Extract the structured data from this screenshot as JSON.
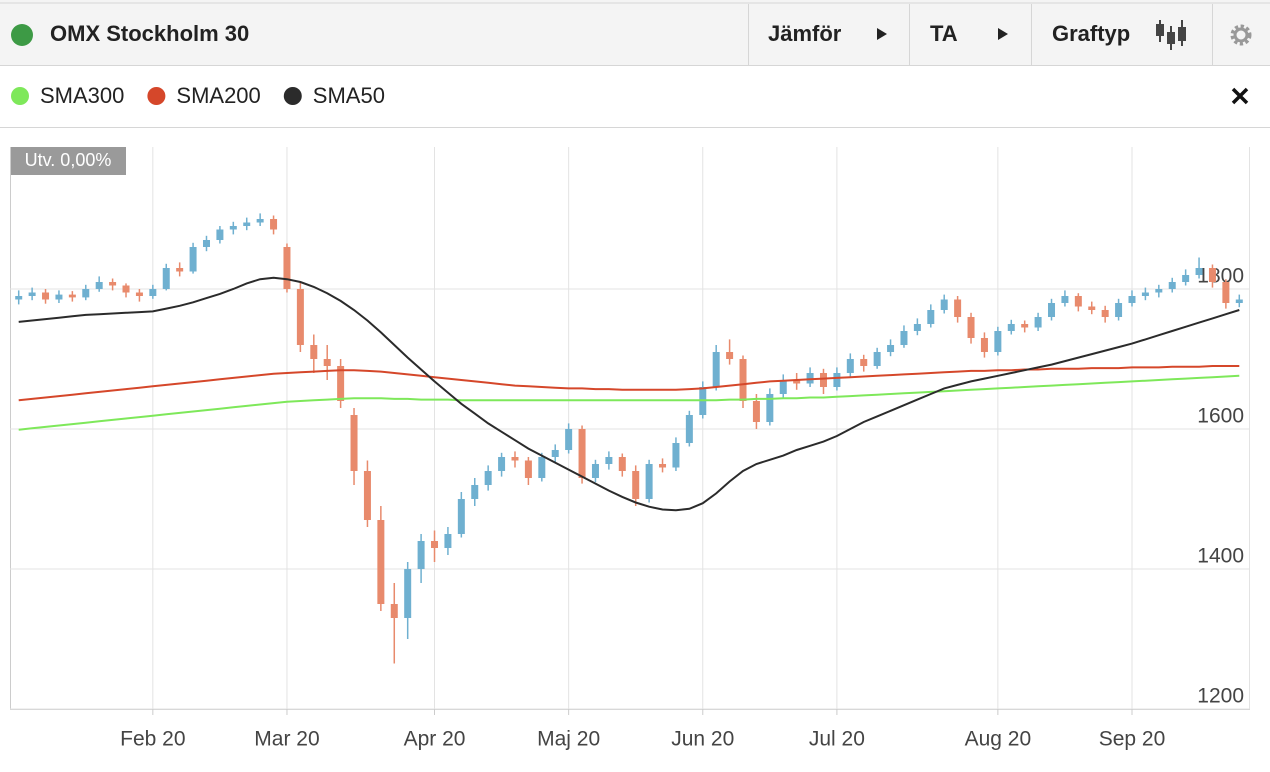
{
  "header": {
    "title": "OMX Stockholm 30",
    "buttons": [
      "Jämför",
      "TA",
      "Graftyp"
    ]
  },
  "chart_data": {
    "type": "candlestick",
    "annotation": "Utv. 0,00%",
    "up_color": "#6fb0d0",
    "down_color": "#e88a6c",
    "ylim": [
      1200,
      2000
    ],
    "yticks": [
      1200,
      1400,
      1600,
      1800
    ],
    "grid": true,
    "categories": [
      null,
      null,
      null,
      null,
      null,
      null,
      null,
      null,
      null,
      null,
      "Feb 20",
      null,
      null,
      null,
      null,
      null,
      null,
      null,
      null,
      null,
      "Mar 20",
      null,
      null,
      null,
      null,
      null,
      null,
      null,
      null,
      null,
      null,
      "Apr 20",
      null,
      null,
      null,
      null,
      null,
      null,
      null,
      null,
      null,
      "Maj 20",
      null,
      null,
      null,
      null,
      null,
      null,
      null,
      null,
      null,
      "Jun 20",
      null,
      null,
      null,
      null,
      null,
      null,
      null,
      null,
      null,
      "Jul 20",
      null,
      null,
      null,
      null,
      null,
      null,
      null,
      null,
      null,
      null,
      null,
      "Aug 20",
      null,
      null,
      null,
      null,
      null,
      null,
      null,
      null,
      null,
      "Sep 20",
      null,
      null,
      null,
      null,
      null,
      null,
      null,
      null
    ],
    "candles": [
      [
        1785,
        1798,
        1778,
        1790
      ],
      [
        1790,
        1802,
        1784,
        1795
      ],
      [
        1795,
        1800,
        1779,
        1785
      ],
      [
        1785,
        1798,
        1780,
        1792
      ],
      [
        1792,
        1797,
        1782,
        1788
      ],
      [
        1788,
        1806,
        1784,
        1800
      ],
      [
        1800,
        1818,
        1796,
        1810
      ],
      [
        1810,
        1815,
        1798,
        1805
      ],
      [
        1805,
        1808,
        1788,
        1795
      ],
      [
        1795,
        1800,
        1782,
        1790
      ],
      [
        1790,
        1806,
        1786,
        1800
      ],
      [
        1800,
        1836,
        1798,
        1830
      ],
      [
        1830,
        1838,
        1818,
        1825
      ],
      [
        1825,
        1866,
        1822,
        1860
      ],
      [
        1860,
        1876,
        1854,
        1870
      ],
      [
        1870,
        1890,
        1865,
        1885
      ],
      [
        1885,
        1896,
        1878,
        1890
      ],
      [
        1890,
        1902,
        1884,
        1895
      ],
      [
        1895,
        1908,
        1890,
        1900
      ],
      [
        1900,
        1905,
        1878,
        1885
      ],
      [
        1860,
        1865,
        1795,
        1800
      ],
      [
        1800,
        1810,
        1710,
        1720
      ],
      [
        1720,
        1735,
        1680,
        1700
      ],
      [
        1700,
        1720,
        1670,
        1690
      ],
      [
        1690,
        1700,
        1630,
        1640
      ],
      [
        1620,
        1630,
        1520,
        1540
      ],
      [
        1540,
        1555,
        1460,
        1470
      ],
      [
        1470,
        1490,
        1340,
        1350
      ],
      [
        1350,
        1380,
        1265,
        1330
      ],
      [
        1330,
        1410,
        1300,
        1400
      ],
      [
        1400,
        1450,
        1380,
        1440
      ],
      [
        1440,
        1455,
        1410,
        1430
      ],
      [
        1430,
        1460,
        1420,
        1450
      ],
      [
        1450,
        1510,
        1445,
        1500
      ],
      [
        1500,
        1530,
        1490,
        1520
      ],
      [
        1520,
        1548,
        1512,
        1540
      ],
      [
        1540,
        1566,
        1532,
        1560
      ],
      [
        1560,
        1568,
        1545,
        1555
      ],
      [
        1555,
        1560,
        1520,
        1530
      ],
      [
        1530,
        1566,
        1525,
        1560
      ],
      [
        1560,
        1578,
        1552,
        1570
      ],
      [
        1570,
        1608,
        1565,
        1600
      ],
      [
        1600,
        1605,
        1522,
        1530
      ],
      [
        1530,
        1556,
        1524,
        1550
      ],
      [
        1550,
        1568,
        1542,
        1560
      ],
      [
        1560,
        1565,
        1532,
        1540
      ],
      [
        1540,
        1548,
        1490,
        1500
      ],
      [
        1500,
        1556,
        1495,
        1550
      ],
      [
        1550,
        1558,
        1538,
        1545
      ],
      [
        1545,
        1588,
        1540,
        1580
      ],
      [
        1580,
        1626,
        1575,
        1620
      ],
      [
        1620,
        1668,
        1615,
        1660
      ],
      [
        1660,
        1720,
        1655,
        1710
      ],
      [
        1710,
        1728,
        1692,
        1700
      ],
      [
        1700,
        1705,
        1630,
        1640
      ],
      [
        1640,
        1650,
        1600,
        1610
      ],
      [
        1610,
        1658,
        1605,
        1650
      ],
      [
        1650,
        1678,
        1645,
        1670
      ],
      [
        1670,
        1680,
        1656,
        1665
      ],
      [
        1665,
        1688,
        1660,
        1680
      ],
      [
        1680,
        1686,
        1650,
        1660
      ],
      [
        1660,
        1688,
        1655,
        1680
      ],
      [
        1680,
        1708,
        1675,
        1700
      ],
      [
        1700,
        1706,
        1682,
        1690
      ],
      [
        1690,
        1716,
        1686,
        1710
      ],
      [
        1710,
        1728,
        1704,
        1720
      ],
      [
        1720,
        1748,
        1716,
        1740
      ],
      [
        1740,
        1758,
        1734,
        1750
      ],
      [
        1750,
        1778,
        1745,
        1770
      ],
      [
        1770,
        1792,
        1765,
        1785
      ],
      [
        1785,
        1790,
        1752,
        1760
      ],
      [
        1760,
        1766,
        1722,
        1730
      ],
      [
        1730,
        1738,
        1702,
        1710
      ],
      [
        1710,
        1746,
        1705,
        1740
      ],
      [
        1740,
        1756,
        1735,
        1750
      ],
      [
        1750,
        1755,
        1738,
        1745
      ],
      [
        1745,
        1766,
        1740,
        1760
      ],
      [
        1760,
        1786,
        1755,
        1780
      ],
      [
        1780,
        1798,
        1775,
        1790
      ],
      [
        1790,
        1794,
        1768,
        1775
      ],
      [
        1775,
        1782,
        1764,
        1770
      ],
      [
        1770,
        1776,
        1752,
        1760
      ],
      [
        1760,
        1786,
        1755,
        1780
      ],
      [
        1780,
        1798,
        1775,
        1790
      ],
      [
        1790,
        1802,
        1784,
        1795
      ],
      [
        1795,
        1806,
        1788,
        1800
      ],
      [
        1800,
        1816,
        1795,
        1810
      ],
      [
        1810,
        1828,
        1805,
        1820
      ],
      [
        1820,
        1845,
        1815,
        1830
      ],
      [
        1830,
        1835,
        1802,
        1810
      ],
      [
        1810,
        1814,
        1772,
        1780
      ],
      [
        1780,
        1792,
        1774,
        1785
      ]
    ],
    "series": [
      {
        "name": "SMA300",
        "color": "#7ee85a",
        "values": [
          1599,
          1601,
          1603,
          1605,
          1607,
          1609,
          1611,
          1613,
          1615,
          1617,
          1619,
          1621,
          1623,
          1625,
          1627,
          1629,
          1631,
          1633,
          1635,
          1637,
          1639,
          1640,
          1641,
          1642,
          1643,
          1644,
          1644,
          1644,
          1643,
          1643,
          1642,
          1642,
          1642,
          1641,
          1641,
          1641,
          1641,
          1641,
          1641,
          1641,
          1641,
          1641,
          1641,
          1641,
          1641,
          1641,
          1641,
          1641,
          1641,
          1641,
          1641,
          1641,
          1641,
          1642,
          1642,
          1643,
          1643,
          1644,
          1644,
          1645,
          1645,
          1646,
          1647,
          1648,
          1649,
          1650,
          1651,
          1652,
          1653,
          1654,
          1655,
          1656,
          1657,
          1658,
          1659,
          1660,
          1661,
          1662,
          1663,
          1664,
          1665,
          1666,
          1667,
          1668,
          1669,
          1670,
          1671,
          1672,
          1673,
          1674,
          1675,
          1676
        ]
      },
      {
        "name": "SMA200",
        "color": "#d5472a",
        "values": [
          1641,
          1643,
          1645,
          1647,
          1649,
          1651,
          1653,
          1655,
          1657,
          1659,
          1661,
          1663,
          1665,
          1667,
          1669,
          1671,
          1673,
          1675,
          1677,
          1679,
          1680,
          1681,
          1682,
          1683,
          1684,
          1684,
          1683,
          1682,
          1680,
          1678,
          1676,
          1674,
          1672,
          1670,
          1668,
          1666,
          1664,
          1662,
          1661,
          1660,
          1659,
          1658,
          1658,
          1657,
          1657,
          1656,
          1656,
          1656,
          1656,
          1656,
          1657,
          1658,
          1660,
          1662,
          1664,
          1666,
          1668,
          1669,
          1670,
          1671,
          1672,
          1673,
          1674,
          1675,
          1676,
          1677,
          1678,
          1679,
          1680,
          1681,
          1682,
          1683,
          1683,
          1684,
          1684,
          1685,
          1685,
          1686,
          1686,
          1686,
          1687,
          1687,
          1687,
          1688,
          1688,
          1688,
          1689,
          1689,
          1689,
          1690,
          1690,
          1690
        ]
      },
      {
        "name": "SMA50",
        "color": "#2b2b2b",
        "values": [
          1753,
          1755,
          1757,
          1759,
          1761,
          1763,
          1764,
          1765,
          1766,
          1767,
          1768,
          1772,
          1776,
          1781,
          1787,
          1793,
          1800,
          1808,
          1814,
          1816,
          1814,
          1810,
          1803,
          1794,
          1783,
          1770,
          1755,
          1738,
          1720,
          1702,
          1685,
          1668,
          1652,
          1636,
          1622,
          1608,
          1596,
          1584,
          1572,
          1562,
          1552,
          1542,
          1532,
          1522,
          1512,
          1503,
          1495,
          1489,
          1485,
          1484,
          1486,
          1494,
          1508,
          1525,
          1540,
          1550,
          1556,
          1562,
          1570,
          1576,
          1582,
          1590,
          1600,
          1610,
          1618,
          1626,
          1634,
          1642,
          1650,
          1658,
          1663,
          1668,
          1672,
          1676,
          1680,
          1684,
          1688,
          1692,
          1697,
          1702,
          1707,
          1712,
          1717,
          1722,
          1728,
          1734,
          1740,
          1746,
          1752,
          1758,
          1764,
          1770
        ]
      }
    ]
  }
}
